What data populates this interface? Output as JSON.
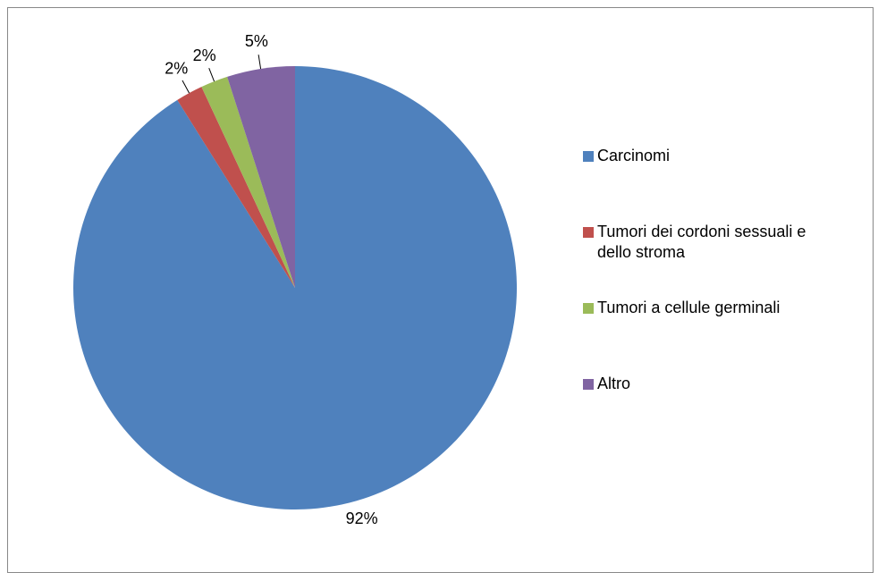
{
  "chart_data": {
    "type": "pie",
    "categories": [
      "Carcinomi",
      "Tumori dei cordoni sessuali e dello stroma",
      "Tumori a cellule germinali",
      "Altro"
    ],
    "values": [
      92,
      2,
      2,
      5
    ],
    "value_labels": [
      "92%",
      "2%",
      "2%",
      "5%"
    ],
    "colors": [
      "#4f81bd",
      "#c0504d",
      "#9bbb59",
      "#8064a2"
    ],
    "legend": "right"
  }
}
